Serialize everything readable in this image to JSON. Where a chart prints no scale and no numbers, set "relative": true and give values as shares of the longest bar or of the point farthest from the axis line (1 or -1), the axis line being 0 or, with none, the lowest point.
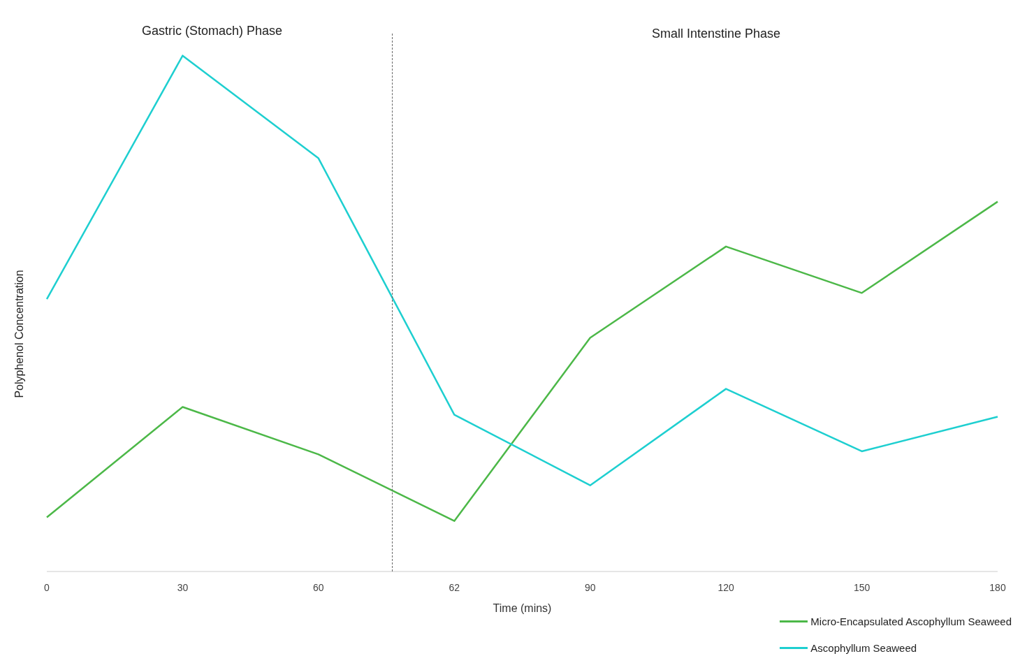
{
  "chart_data": {
    "type": "line",
    "relative": true,
    "xlabel": "Time (mins)",
    "ylabel": "Polyphenol Concentration",
    "annotations": [
      "Gastric (Stomach) Phase",
      "Small Intenstine Phase"
    ],
    "categories": [
      "0",
      "30",
      "60",
      "62",
      "90",
      "120",
      "150",
      "180"
    ],
    "series": [
      {
        "name": "Micro-Encapsulated Ascophyllum Seaweed",
        "color": "#4cb848",
        "values": [
          0.105,
          0.319,
          0.227,
          0.098,
          0.453,
          0.63,
          0.54,
          0.717
        ]
      },
      {
        "name": "Ascophyllum Seaweed",
        "color": "#1ecfd0",
        "values": [
          0.528,
          1,
          0.801,
          0.304,
          0.167,
          0.354,
          0.233,
          0.3
        ]
      }
    ],
    "grid": false,
    "legend": "bottom right",
    "marker": "none",
    "line_style": "solid"
  }
}
